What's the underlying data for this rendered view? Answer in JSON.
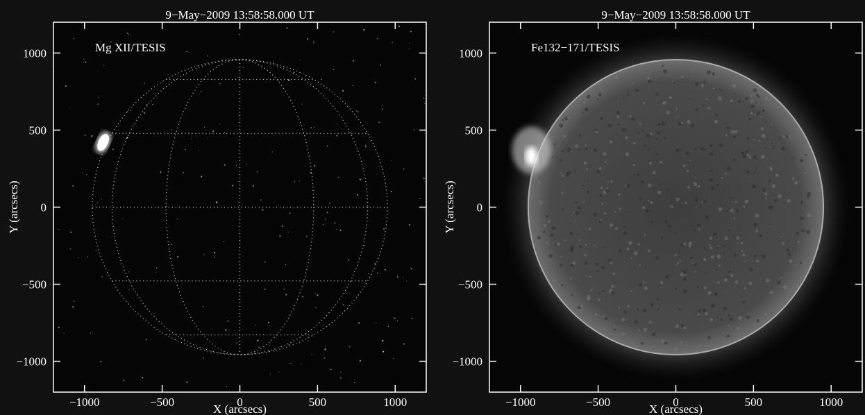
{
  "chart_data": [
    {
      "type": "image",
      "title": "9−May−2009 13:58:58.000 UT",
      "annotation": "Mg XII/TESIS",
      "xlabel": "X (arcsecs)",
      "ylabel": "Y (arcsecs)",
      "xlim": [
        -1200,
        1200
      ],
      "ylim": [
        -1200,
        1200
      ],
      "xticks": [
        {
          "value": -1000,
          "label": "−1000"
        },
        {
          "value": -500,
          "label": "−500"
        },
        0,
        500,
        1000
      ],
      "yticks": [
        {
          "value": -1000,
          "label": "−1000"
        },
        {
          "value": -500,
          "label": "−500"
        },
        0,
        500,
        1000
      ]
    },
    {
      "type": "image",
      "title": "9−May−2009 13:58:58.000 UT",
      "annotation": "Fe132−171/TESIS",
      "xlabel": "X (arcsecs)",
      "ylabel": "Y (arcsecs)",
      "xlim": [
        -1200,
        1200
      ],
      "ylim": [
        -1200,
        1200
      ],
      "xticks": [
        {
          "value": -1000,
          "label": "−1000"
        },
        {
          "value": -500,
          "label": "−500"
        },
        0,
        500,
        1000
      ],
      "yticks": [
        {
          "value": -1000,
          "label": "−1000"
        },
        {
          "value": -500,
          "label": "−500"
        },
        0,
        500,
        1000
      ]
    }
  ]
}
